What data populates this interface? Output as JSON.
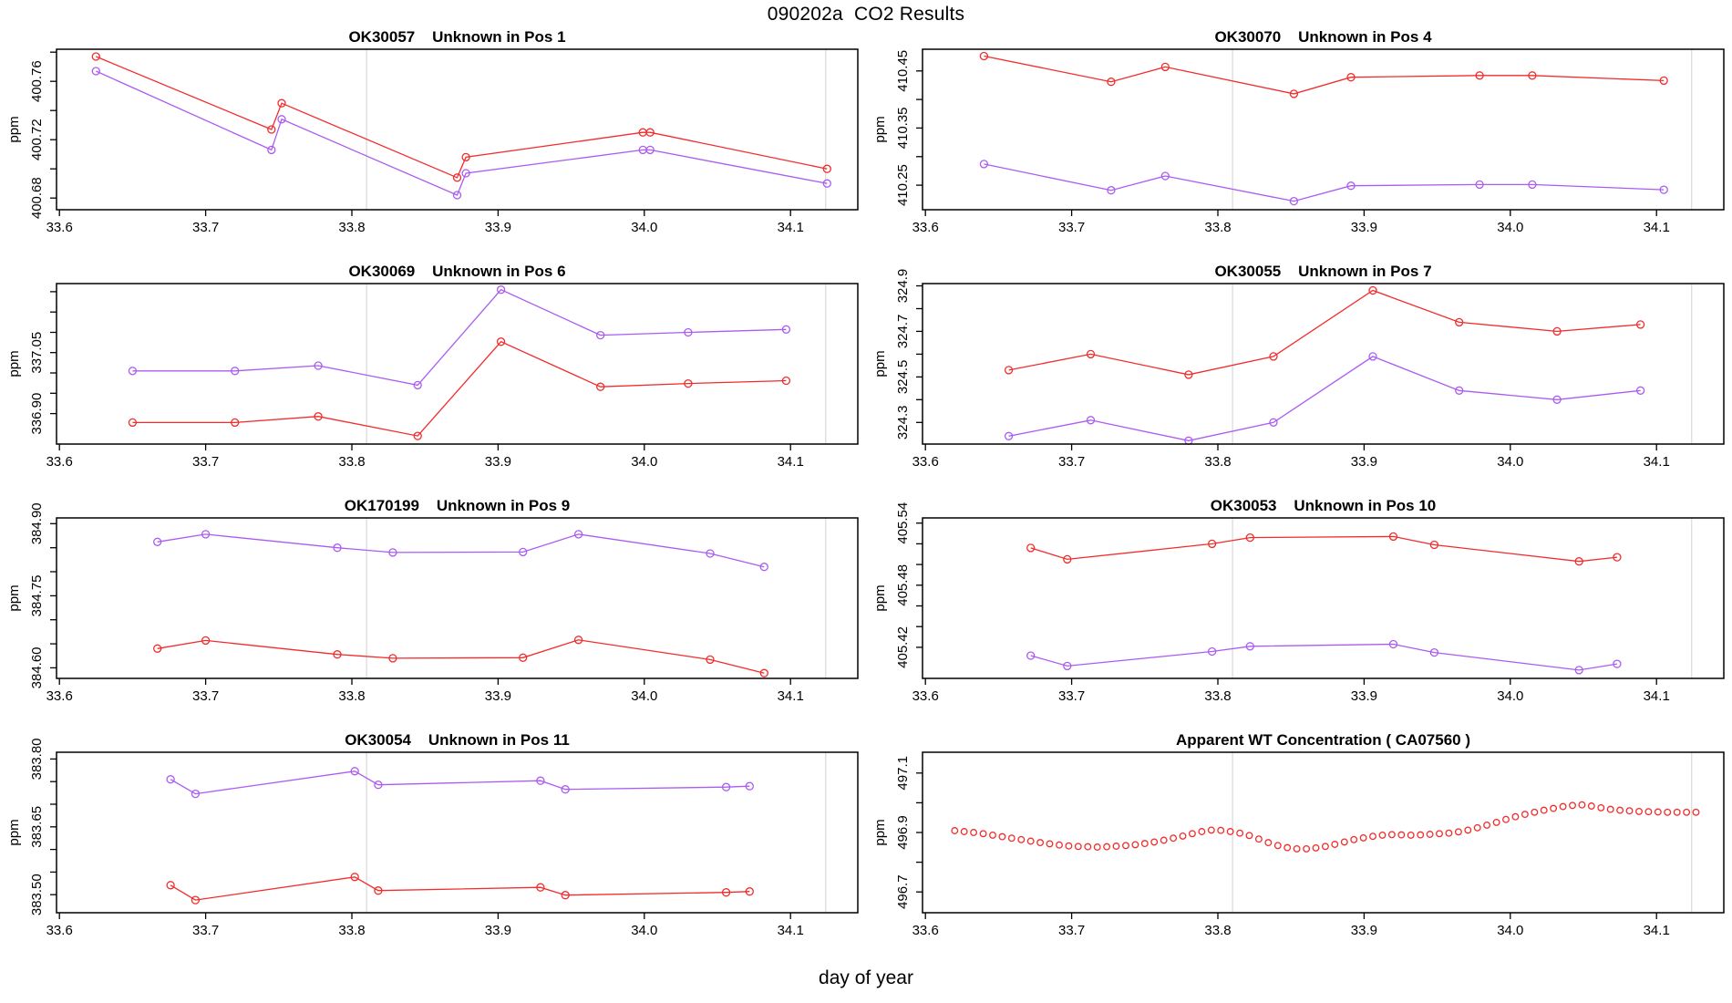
{
  "page": {
    "title": "090202a  CO2 Results",
    "xlabel": "day of year",
    "ylabel": "ppm"
  },
  "style": {
    "red_color": "#f22c2c",
    "purple_color": "#aa5cf2",
    "refline_color": "#dcdcdc",
    "axis_color": "#000000"
  },
  "axes": {
    "xlim": [
      33.598,
      34.146
    ],
    "xticks": [
      33.6,
      33.7,
      33.8,
      33.9,
      34.0,
      34.1
    ],
    "xtick_labels": [
      "33.6",
      "33.7",
      "33.8",
      "33.9",
      "34.0",
      "34.1"
    ],
    "vlines": [
      33.81,
      34.124
    ]
  },
  "chart_data": [
    {
      "type": "line",
      "title": "OK30057    Unknown in Pos 1",
      "ylabel": "ppm",
      "ylim": [
        400.672,
        400.782
      ],
      "yticks": [
        400.68,
        400.7,
        400.72,
        400.74,
        400.76,
        400.78
      ],
      "ytick_labels": [
        "400.68",
        "",
        "400.72",
        "",
        "400.76",
        ""
      ],
      "markers_only": false,
      "series": [
        {
          "name": "red",
          "color": "red",
          "x": [
            33.625,
            33.745,
            33.752,
            33.872,
            33.878,
            33.999,
            34.004,
            34.125
          ],
          "y": [
            400.777,
            400.727,
            400.745,
            400.694,
            400.708,
            400.725,
            400.725,
            400.7
          ]
        },
        {
          "name": "purple",
          "color": "purple",
          "x": [
            33.625,
            33.745,
            33.752,
            33.872,
            33.878,
            33.999,
            34.004,
            34.125
          ],
          "y": [
            400.767,
            400.713,
            400.734,
            400.682,
            400.697,
            400.713,
            400.713,
            400.69
          ]
        }
      ]
    },
    {
      "type": "line",
      "title": "OK30070    Unknown in Pos 4",
      "ylabel": "ppm",
      "ylim": [
        410.207,
        410.488
      ],
      "yticks": [
        410.25,
        410.3,
        410.35,
        410.4,
        410.45
      ],
      "ytick_labels": [
        "410.25",
        "",
        "410.35",
        "",
        "410.45"
      ],
      "markers_only": false,
      "series": [
        {
          "name": "red",
          "color": "red",
          "x": [
            33.64,
            33.727,
            33.764,
            33.852,
            33.891,
            33.979,
            34.015,
            34.105
          ],
          "y": [
            410.476,
            410.431,
            410.457,
            410.41,
            410.439,
            410.442,
            410.442,
            410.433
          ]
        },
        {
          "name": "purple",
          "color": "purple",
          "x": [
            33.64,
            33.727,
            33.764,
            33.852,
            33.891,
            33.979,
            34.015,
            34.105
          ],
          "y": [
            410.287,
            410.241,
            410.266,
            410.222,
            410.249,
            410.251,
            410.251,
            410.242
          ]
        }
      ]
    },
    {
      "type": "line",
      "title": "OK30069    Unknown in Pos 6",
      "ylabel": "ppm",
      "ylim": [
        336.825,
        337.22
      ],
      "yticks": [
        336.9,
        336.95,
        337.0,
        337.05,
        337.1,
        337.15,
        337.2
      ],
      "ytick_labels": [
        "336.90",
        "",
        "",
        "337.05",
        "",
        "",
        ""
      ],
      "markers_only": false,
      "series": [
        {
          "name": "purple",
          "color": "purple",
          "x": [
            33.65,
            33.72,
            33.777,
            33.845,
            33.902,
            33.97,
            34.03,
            34.097
          ],
          "y": [
            337.005,
            337.005,
            337.018,
            336.97,
            337.205,
            337.093,
            337.1,
            337.107
          ]
        },
        {
          "name": "red",
          "color": "red",
          "x": [
            33.65,
            33.72,
            33.777,
            33.845,
            33.902,
            33.97,
            34.03,
            34.097
          ],
          "y": [
            336.878,
            336.878,
            336.893,
            336.845,
            337.077,
            336.966,
            336.974,
            336.981
          ]
        }
      ]
    },
    {
      "type": "line",
      "title": "OK30055    Unknown in Pos 7",
      "ylabel": "ppm",
      "ylim": [
        324.205,
        324.91
      ],
      "yticks": [
        324.3,
        324.4,
        324.5,
        324.6,
        324.7,
        324.8,
        324.9
      ],
      "ytick_labels": [
        "324.3",
        "",
        "324.5",
        "",
        "324.7",
        "",
        "324.9"
      ],
      "markers_only": false,
      "series": [
        {
          "name": "red",
          "color": "red",
          "x": [
            33.657,
            33.713,
            33.78,
            33.838,
            33.906,
            33.965,
            34.032,
            34.089
          ],
          "y": [
            324.53,
            324.6,
            324.51,
            324.59,
            324.88,
            324.74,
            324.7,
            324.73
          ]
        },
        {
          "name": "purple",
          "color": "purple",
          "x": [
            33.657,
            33.713,
            33.78,
            33.838,
            33.906,
            33.965,
            34.032,
            34.089
          ],
          "y": [
            324.24,
            324.31,
            324.22,
            324.3,
            324.59,
            324.44,
            324.4,
            324.44
          ]
        }
      ]
    },
    {
      "type": "line",
      "title": "OK170199    Unknown in Pos 9",
      "ylabel": "ppm",
      "ylim": [
        384.578,
        384.912
      ],
      "yticks": [
        384.6,
        384.65,
        384.7,
        384.75,
        384.8,
        384.85,
        384.9
      ],
      "ytick_labels": [
        "384.60",
        "",
        "",
        "384.75",
        "",
        "",
        "384.90"
      ],
      "markers_only": false,
      "series": [
        {
          "name": "purple",
          "color": "purple",
          "x": [
            33.667,
            33.7,
            33.79,
            33.828,
            33.917,
            33.955,
            34.045,
            34.082
          ],
          "y": [
            384.862,
            384.878,
            384.85,
            384.84,
            384.841,
            384.878,
            384.838,
            384.81
          ]
        },
        {
          "name": "red",
          "color": "red",
          "x": [
            33.667,
            33.7,
            33.79,
            33.828,
            33.917,
            33.955,
            34.045,
            34.082
          ],
          "y": [
            384.64,
            384.657,
            384.628,
            384.62,
            384.621,
            384.658,
            384.617,
            384.589
          ]
        }
      ]
    },
    {
      "type": "line",
      "title": "OK30053    Unknown in Pos 10",
      "ylabel": "ppm",
      "ylim": [
        405.39,
        405.545
      ],
      "yticks": [
        405.42,
        405.44,
        405.46,
        405.48,
        405.5,
        405.52,
        405.54
      ],
      "ytick_labels": [
        "405.42",
        "",
        "",
        "405.48",
        "",
        "",
        "405.54"
      ],
      "markers_only": false,
      "series": [
        {
          "name": "red",
          "color": "red",
          "x": [
            33.672,
            33.697,
            33.796,
            33.822,
            33.92,
            33.948,
            34.047,
            34.073
          ],
          "y": [
            405.516,
            405.505,
            405.52,
            405.526,
            405.527,
            405.519,
            405.503,
            405.507
          ]
        },
        {
          "name": "purple",
          "color": "purple",
          "x": [
            33.672,
            33.697,
            33.796,
            33.822,
            33.92,
            33.948,
            34.047,
            34.073
          ],
          "y": [
            405.412,
            405.402,
            405.416,
            405.421,
            405.423,
            405.415,
            405.398,
            405.404
          ]
        }
      ]
    },
    {
      "type": "line",
      "title": "OK30054    Unknown in Pos 11",
      "ylabel": "ppm",
      "ylim": [
        383.46,
        383.815
      ],
      "yticks": [
        383.5,
        383.55,
        383.6,
        383.65,
        383.7,
        383.75,
        383.8
      ],
      "ytick_labels": [
        "383.50",
        "",
        "",
        "383.65",
        "",
        "",
        "383.80"
      ],
      "markers_only": false,
      "series": [
        {
          "name": "purple",
          "color": "purple",
          "x": [
            33.676,
            33.693,
            33.802,
            33.818,
            33.929,
            33.946,
            34.056,
            34.072
          ],
          "y": [
            383.755,
            383.723,
            383.773,
            383.743,
            383.752,
            383.733,
            383.738,
            383.74
          ]
        },
        {
          "name": "red",
          "color": "red",
          "x": [
            33.676,
            33.693,
            33.802,
            33.818,
            33.929,
            33.946,
            34.056,
            34.072
          ],
          "y": [
            383.521,
            383.488,
            383.539,
            383.509,
            383.516,
            383.499,
            383.505,
            383.507
          ]
        }
      ]
    },
    {
      "type": "scatter",
      "title": "Apparent WT Concentration ( CA07560 )",
      "ylabel": "ppm",
      "ylim": [
        496.63,
        497.17
      ],
      "yticks": [
        496.7,
        496.8,
        496.9,
        497.0,
        497.1
      ],
      "ytick_labels": [
        "496.7",
        "",
        "496.9",
        "",
        "497.1"
      ],
      "markers_only": true,
      "series": [
        {
          "name": "red",
          "color": "red",
          "x": [
            33.62,
            33.6265,
            33.633,
            33.6395,
            33.646,
            33.6525,
            33.659,
            33.6655,
            33.672,
            33.6785,
            33.685,
            33.6915,
            33.698,
            33.7045,
            33.711,
            33.7175,
            33.724,
            33.7305,
            33.737,
            33.7435,
            33.75,
            33.7565,
            33.763,
            33.7695,
            33.776,
            33.7825,
            33.789,
            33.7955,
            33.802,
            33.8085,
            33.815,
            33.8215,
            33.828,
            33.8345,
            33.841,
            33.8475,
            33.854,
            33.8605,
            33.867,
            33.8735,
            33.88,
            33.8865,
            33.893,
            33.8995,
            33.906,
            33.9125,
            33.919,
            33.9255,
            33.932,
            33.9385,
            33.945,
            33.9515,
            33.958,
            33.9645,
            33.971,
            33.9775,
            33.984,
            33.9905,
            33.997,
            34.0035,
            34.01,
            34.0165,
            34.023,
            34.0295,
            34.036,
            34.0425,
            34.049,
            34.0555,
            34.062,
            34.0685,
            34.075,
            34.0815,
            34.088,
            34.0945,
            34.101,
            34.1075,
            34.114,
            34.1205,
            34.127
          ],
          "y": [
            496.906,
            496.903,
            496.9,
            496.896,
            496.891,
            496.886,
            496.881,
            496.876,
            496.871,
            496.866,
            496.862,
            496.858,
            496.855,
            496.853,
            496.852,
            496.851,
            496.852,
            496.854,
            496.856,
            496.859,
            496.863,
            496.868,
            496.874,
            496.881,
            496.888,
            496.896,
            496.903,
            496.908,
            496.907,
            496.903,
            496.898,
            496.89,
            496.878,
            496.866,
            496.856,
            496.849,
            496.845,
            496.845,
            496.848,
            496.853,
            496.86,
            496.868,
            496.876,
            496.882,
            496.887,
            496.891,
            496.893,
            496.892,
            496.891,
            496.892,
            496.894,
            496.896,
            496.898,
            496.902,
            496.908,
            496.916,
            496.925,
            496.934,
            496.944,
            496.953,
            496.961,
            496.968,
            496.975,
            496.981,
            496.987,
            496.991,
            496.993,
            496.989,
            496.983,
            496.978,
            496.975,
            496.973,
            496.971,
            496.97,
            496.969,
            496.968,
            496.968,
            496.968,
            496.968
          ]
        }
      ]
    }
  ]
}
